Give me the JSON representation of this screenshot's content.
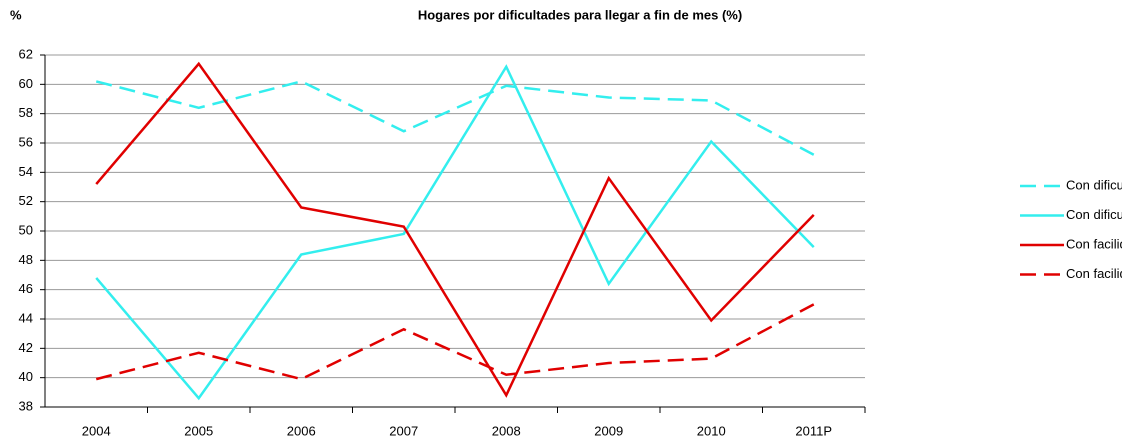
{
  "chart_data": {
    "type": "line",
    "title": "Hogares por dificultades para llegar a fin de mes (%)",
    "y_label": "%",
    "categories": [
      "2004",
      "2005",
      "2006",
      "2007",
      "2008",
      "2009",
      "2010",
      "2011P"
    ],
    "series": [
      {
        "name": "Con dificultad España",
        "color": "#33eeee",
        "dashed": true,
        "values": [
          60.2,
          58.4,
          60.2,
          56.8,
          59.9,
          59.1,
          58.9,
          55.2
        ]
      },
      {
        "name": "Con dificultad Cantabria",
        "color": "#33eeee",
        "dashed": false,
        "values": [
          46.8,
          38.6,
          48.4,
          49.8,
          61.2,
          46.4,
          56.1,
          48.9
        ]
      },
      {
        "name": "Con facilidad Cantabria",
        "color": "#e00000",
        "dashed": false,
        "values": [
          53.2,
          61.4,
          51.6,
          50.3,
          38.8,
          53.6,
          43.9,
          51.1
        ]
      },
      {
        "name": "Con facilidad España",
        "color": "#e00000",
        "dashed": true,
        "values": [
          39.9,
          41.7,
          39.9,
          43.3,
          40.2,
          41.0,
          41.3,
          45.0
        ]
      }
    ],
    "ylim": [
      38,
      62
    ],
    "yticks": [
      38,
      40,
      42,
      44,
      46,
      48,
      50,
      52,
      54,
      56,
      58,
      60,
      62
    ],
    "grid": true,
    "legend": "right"
  }
}
